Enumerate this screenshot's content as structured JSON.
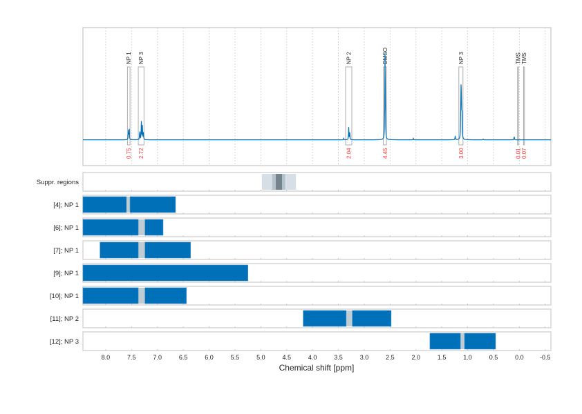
{
  "chart_data": {
    "type": "line",
    "xlabel": "Chemical shift [ppm]",
    "xlim": [
      8.44,
      -0.61
    ],
    "x_ticks": [
      8.0,
      7.5,
      7.0,
      6.5,
      6.0,
      5.5,
      5.0,
      4.5,
      4.0,
      3.5,
      3.0,
      2.5,
      2.0,
      1.5,
      1.0,
      0.5,
      0.0,
      -0.5
    ],
    "x_tick_labels": [
      "8.0",
      "7.5",
      "7.0",
      "6.5",
      "6.0",
      "5.5",
      "5.0",
      "4.5",
      "4.0",
      "3.5",
      "3.0",
      "2.5",
      "2.0",
      "1.5",
      "1.0",
      "0.5",
      "0.0",
      "-0.5"
    ],
    "grid": true,
    "colors": {
      "spectrum": "#0070b8",
      "bar": "#0070b8",
      "gap": "#c0ccd3",
      "integral": "#ff3333",
      "suppr_light": "#d6dfe6",
      "suppr_mid": "#b3c2cc",
      "suppr_dark": "#73848f"
    },
    "spectrum": {
      "ylim": [
        -0.37,
        1.61
      ],
      "peaks": [
        {
          "ppm": 7.56,
          "intensity": 0.17
        },
        {
          "ppm": 7.545,
          "intensity": 0.15
        },
        {
          "ppm": 7.34,
          "intensity": 0.17
        },
        {
          "ppm": 7.31,
          "intensity": 0.26
        },
        {
          "ppm": 7.29,
          "intensity": 0.2
        },
        {
          "ppm": 7.27,
          "intensity": 0.1
        },
        {
          "ppm": 3.3,
          "intensity": 0.18
        },
        {
          "ppm": 3.28,
          "intensity": 0.1
        },
        {
          "ppm": 3.4,
          "intensity": 0.02
        },
        {
          "ppm": 2.595,
          "intensity": 1.0
        },
        {
          "ppm": 2.6,
          "intensity": 0.78
        },
        {
          "ppm": 1.13,
          "intensity": 0.87
        },
        {
          "ppm": 1.12,
          "intensity": 0.5
        },
        {
          "ppm": 1.11,
          "intensity": 0.45
        },
        {
          "ppm": 1.24,
          "intensity": 0.06
        },
        {
          "ppm": 0.1,
          "intensity": 0.05
        },
        {
          "ppm": 2.05,
          "intensity": 0.02
        },
        {
          "ppm": 0.7,
          "intensity": 0.01
        }
      ]
    },
    "regions": [
      {
        "label": "NP 1",
        "from": 7.58,
        "to": 7.53,
        "integral": "0.75"
      },
      {
        "label": "NP 3",
        "from": 7.37,
        "to": 7.26,
        "integral": "2.72"
      },
      {
        "label": "NP 2",
        "from": 3.36,
        "to": 3.24,
        "integral": "2.04"
      },
      {
        "label": "DMSO",
        "from": 2.63,
        "to": 2.57,
        "integral": "4.45"
      },
      {
        "label": "NP 3",
        "from": 1.17,
        "to": 1.09,
        "integral": "3.00"
      },
      {
        "label": "TMS",
        "from": 0.035,
        "to": 0.025,
        "integral": "0.01"
      },
      {
        "label": "TMS",
        "from": -0.08,
        "to": -0.1,
        "integral": "0.07"
      }
    ],
    "suppressed": {
      "label": "Suppr. regions",
      "bands": [
        {
          "from": 4.98,
          "to": 4.32,
          "level": "light"
        },
        {
          "from": 4.78,
          "to": 4.53,
          "level": "mid"
        },
        {
          "from": 4.71,
          "to": 4.59,
          "level": "dark"
        }
      ]
    },
    "rows": [
      {
        "label": "[4]; NP 1",
        "from": 8.44,
        "to": 6.65,
        "gap": [
          7.6,
          7.53
        ]
      },
      {
        "label": "[6]; NP 1",
        "from": 8.44,
        "to": 6.89,
        "gap": [
          7.37,
          7.24
        ]
      },
      {
        "label": "[7]; NP 1",
        "from": 8.11,
        "to": 6.36,
        "gap": [
          7.37,
          7.24
        ]
      },
      {
        "label": "[9]; NP 1",
        "from": 8.44,
        "to": 5.25,
        "gap": null
      },
      {
        "label": "[10]; NP 1",
        "from": 8.44,
        "to": 6.44,
        "gap": [
          7.37,
          7.24
        ]
      },
      {
        "label": "[11]; NP 2",
        "from": 4.18,
        "to": 2.48,
        "gap": [
          3.35,
          3.23
        ]
      },
      {
        "label": "[12]; NP 3",
        "from": 1.73,
        "to": 0.46,
        "gap": [
          1.14,
          1.06
        ]
      }
    ]
  }
}
